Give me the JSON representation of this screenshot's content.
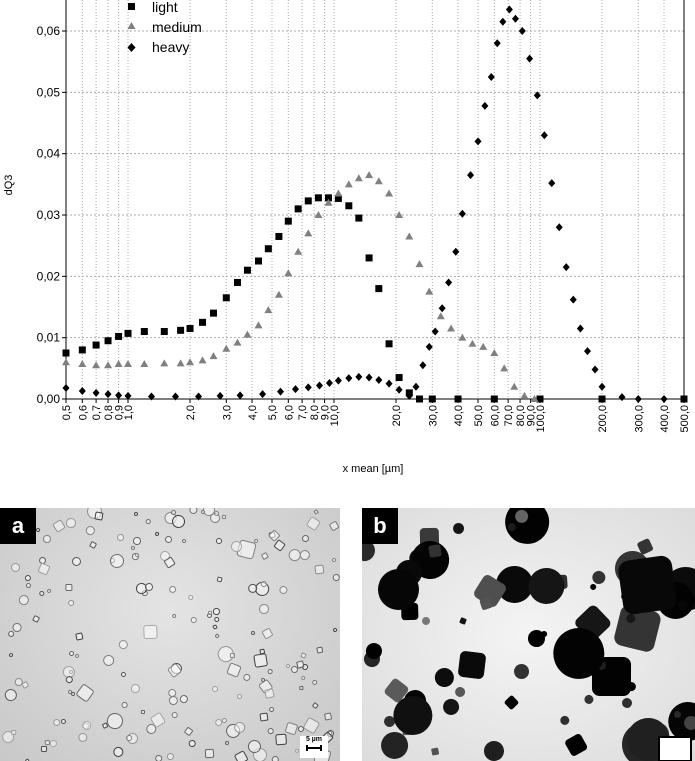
{
  "chart_data": {
    "type": "scatter",
    "xlabel": "x mean [µm]",
    "ylabel": "dQ3",
    "xscale": "log",
    "xlim": [
      0.5,
      500
    ],
    "ylim": [
      0,
      0.065
    ],
    "grid": true,
    "legend_position": "top-left",
    "yticks": [
      "0,00",
      "0,01",
      "0,02",
      "0,03",
      "0,04",
      "0,05",
      "0,06"
    ],
    "ytick_values": [
      0,
      0.01,
      0.02,
      0.03,
      0.04,
      0.05,
      0.06
    ],
    "xticks": [
      "0,5",
      "0,6",
      "0,7",
      "0,8",
      "0,9",
      "1,0",
      "2,0",
      "3,0",
      "4,0",
      "5,0",
      "6,0",
      "7,0",
      "8,0",
      "9,0",
      "10,0",
      "20,0",
      "30,0",
      "40,0",
      "50,0",
      "60,0",
      "70,0",
      "80,0",
      "90,0",
      "100,0",
      "200,0",
      "300,0",
      "400,0",
      "500,0"
    ],
    "xtick_values": [
      0.5,
      0.6,
      0.7,
      0.8,
      0.9,
      1,
      2,
      3,
      4,
      5,
      6,
      7,
      8,
      9,
      10,
      20,
      30,
      40,
      50,
      60,
      70,
      80,
      90,
      100,
      200,
      300,
      400,
      500
    ],
    "series": [
      {
        "name": "light",
        "marker": "square",
        "color": "#000000",
        "x": [
          0.5,
          0.6,
          0.7,
          0.8,
          0.9,
          1.0,
          1.2,
          1.5,
          1.8,
          2.0,
          2.3,
          2.6,
          3.0,
          3.4,
          3.8,
          4.3,
          4.8,
          5.4,
          6.0,
          6.7,
          7.5,
          8.4,
          9.4,
          10.5,
          11.8,
          13.2,
          14.8,
          16.5,
          18.5,
          20.7,
          23.2,
          26,
          30,
          40,
          60,
          100,
          200,
          500
        ],
        "y": [
          0.0075,
          0.008,
          0.0088,
          0.0095,
          0.0102,
          0.0107,
          0.011,
          0.011,
          0.0112,
          0.0115,
          0.0125,
          0.014,
          0.0165,
          0.019,
          0.021,
          0.0225,
          0.0245,
          0.0265,
          0.029,
          0.031,
          0.0323,
          0.0328,
          0.0328,
          0.0327,
          0.0315,
          0.0295,
          0.023,
          0.018,
          0.009,
          0.0035,
          0.001,
          0,
          0,
          0,
          0,
          0,
          0,
          0
        ]
      },
      {
        "name": "medium",
        "marker": "triangle",
        "color": "#808080",
        "x": [
          0.5,
          0.6,
          0.7,
          0.8,
          0.9,
          1.0,
          1.2,
          1.5,
          1.8,
          2.0,
          2.3,
          2.6,
          3.0,
          3.4,
          3.8,
          4.3,
          4.8,
          5.4,
          6.0,
          6.7,
          7.5,
          8.4,
          9.4,
          10.5,
          11.8,
          13.2,
          14.8,
          16.5,
          18.5,
          20.7,
          23.2,
          26,
          29,
          33,
          37,
          42,
          47,
          53,
          60,
          67,
          75,
          84,
          94
        ],
        "y": [
          0.006,
          0.0057,
          0.0055,
          0.0055,
          0.0057,
          0.0057,
          0.0057,
          0.0058,
          0.0058,
          0.006,
          0.0063,
          0.007,
          0.0082,
          0.0092,
          0.0105,
          0.012,
          0.0145,
          0.017,
          0.0205,
          0.024,
          0.027,
          0.03,
          0.032,
          0.0335,
          0.035,
          0.036,
          0.0365,
          0.0355,
          0.0335,
          0.03,
          0.0265,
          0.022,
          0.0175,
          0.0135,
          0.0115,
          0.01,
          0.009,
          0.0085,
          0.0075,
          0.005,
          0.002,
          0.0005,
          0
        ]
      },
      {
        "name": "heavy",
        "marker": "diamond",
        "color": "#000000",
        "x": [
          0.5,
          0.6,
          0.7,
          0.8,
          0.9,
          1.0,
          1.3,
          1.7,
          2.2,
          2.8,
          3.5,
          4.5,
          5.5,
          6.5,
          7.5,
          8.5,
          9.5,
          10.5,
          11.8,
          13.2,
          14.8,
          16.5,
          18.5,
          20.7,
          23.2,
          25,
          27,
          29,
          31,
          33.5,
          36,
          39,
          42,
          46,
          50,
          54,
          58,
          62,
          66,
          71,
          76,
          82,
          89,
          97,
          105,
          114,
          124,
          134,
          145,
          157,
          170,
          185,
          200,
          250,
          300,
          400,
          500
        ],
        "y": [
          0.0018,
          0.0013,
          0.001,
          0.0008,
          0.0006,
          0.0005,
          0.0004,
          0.0004,
          0.0004,
          0.0005,
          0.0006,
          0.0008,
          0.0012,
          0.0016,
          0.0019,
          0.0022,
          0.0026,
          0.003,
          0.0034,
          0.0036,
          0.0035,
          0.0031,
          0.0025,
          0.0015,
          0.0005,
          0.002,
          0.0055,
          0.0085,
          0.011,
          0.0148,
          0.019,
          0.024,
          0.0302,
          0.0365,
          0.042,
          0.0478,
          0.0525,
          0.058,
          0.0615,
          0.0635,
          0.062,
          0.06,
          0.0555,
          0.0495,
          0.043,
          0.0352,
          0.028,
          0.0215,
          0.0162,
          0.0115,
          0.0078,
          0.0048,
          0.002,
          0.0003,
          0,
          0,
          0
        ]
      }
    ]
  },
  "photos": {
    "a_label": "a",
    "b_label": "b",
    "a_scale": "5 µm"
  }
}
